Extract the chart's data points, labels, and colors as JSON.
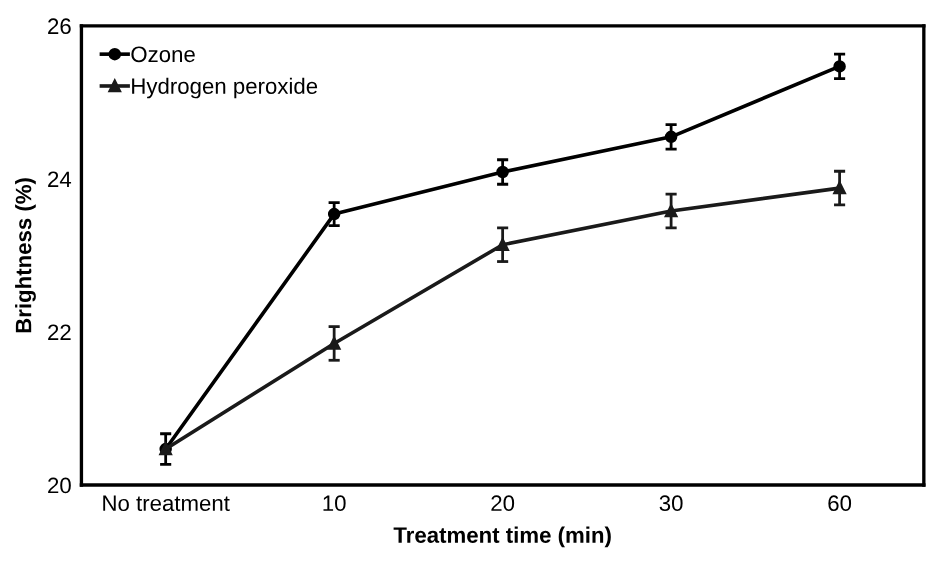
{
  "chart_data": {
    "type": "line",
    "xlabel": "Treatment time (min)",
    "ylabel": "Brightness (%)",
    "categories": [
      "No treatment",
      "10",
      "20",
      "30",
      "60"
    ],
    "series": [
      {
        "name": "Ozone",
        "color": "#000000",
        "marker": "circle",
        "values": [
          20.47,
          23.54,
          24.09,
          24.55,
          25.47
        ],
        "errors": [
          0.2,
          0.15,
          0.16,
          0.16,
          0.16
        ]
      },
      {
        "name": "Hydrogen peroxide",
        "color": "#1a1a1a",
        "marker": "triangle",
        "values": [
          20.47,
          21.85,
          23.14,
          23.58,
          23.88
        ],
        "errors": [
          null,
          0.22,
          0.22,
          0.22,
          0.22
        ]
      }
    ],
    "ylim": [
      20,
      26
    ],
    "yticks": [
      20,
      22,
      24,
      26
    ],
    "grid": false,
    "legend": "top left",
    "line_style": "solid"
  }
}
